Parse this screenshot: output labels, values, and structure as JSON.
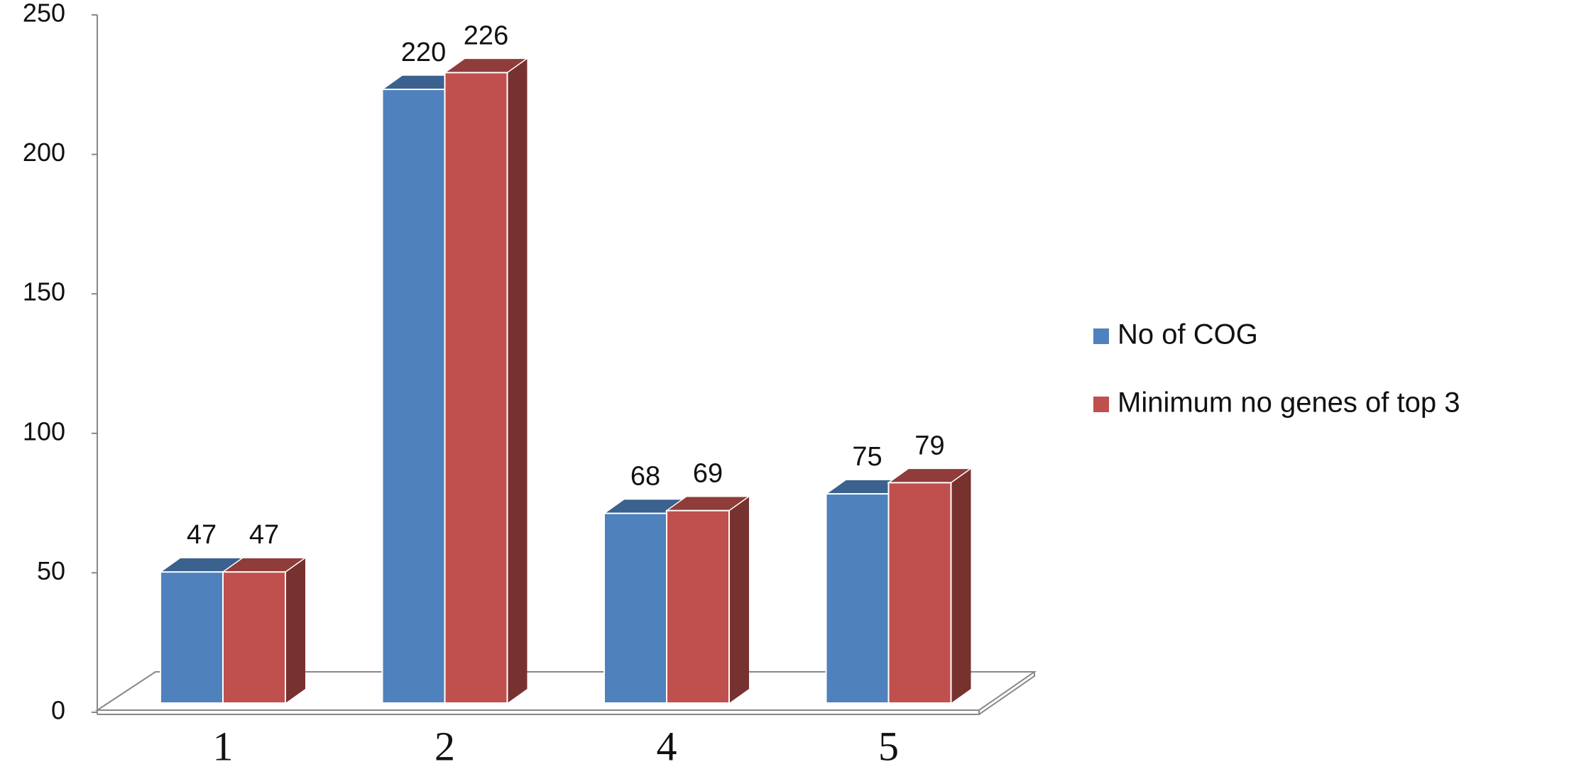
{
  "chart_data": {
    "type": "bar3d",
    "categories": [
      "1",
      "2",
      "4",
      "5"
    ],
    "series": [
      {
        "name": "No of COG",
        "color": "#4f81bd",
        "values": [
          47,
          220,
          68,
          75
        ]
      },
      {
        "name": "Minimum no genes of top 3",
        "color": "#c0504d",
        "values": [
          47,
          226,
          69,
          79
        ]
      }
    ],
    "ylim": [
      0,
      250
    ],
    "yticks": [
      0,
      50,
      100,
      150,
      200,
      250
    ],
    "legend": "right"
  }
}
